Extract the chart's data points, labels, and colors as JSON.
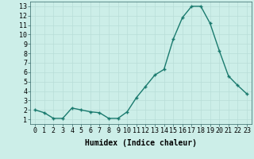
{
  "x": [
    0,
    1,
    2,
    3,
    4,
    5,
    6,
    7,
    8,
    9,
    10,
    11,
    12,
    13,
    14,
    15,
    16,
    17,
    18,
    19,
    20,
    21,
    22,
    23
  ],
  "y": [
    2.0,
    1.7,
    1.1,
    1.1,
    2.2,
    2.0,
    1.8,
    1.7,
    1.1,
    1.1,
    1.8,
    3.3,
    4.5,
    5.7,
    6.3,
    9.5,
    11.8,
    13.0,
    13.0,
    11.2,
    8.3,
    5.6,
    4.6,
    3.7
  ],
  "line_color": "#1a7a6e",
  "marker": "+",
  "marker_color": "#1a7a6e",
  "bg_color": "#cceee8",
  "grid_color": "#b8ddd8",
  "xlabel": "Humidex (Indice chaleur)",
  "ylim": [
    0.5,
    13.5
  ],
  "xlim": [
    -0.5,
    23.5
  ],
  "yticks": [
    1,
    2,
    3,
    4,
    5,
    6,
    7,
    8,
    9,
    10,
    11,
    12,
    13
  ],
  "xticks": [
    0,
    1,
    2,
    3,
    4,
    5,
    6,
    7,
    8,
    9,
    10,
    11,
    12,
    13,
    14,
    15,
    16,
    17,
    18,
    19,
    20,
    21,
    22,
    23
  ],
  "xlabel_fontsize": 7,
  "tick_fontsize": 6,
  "line_width": 1.0,
  "marker_size": 3
}
